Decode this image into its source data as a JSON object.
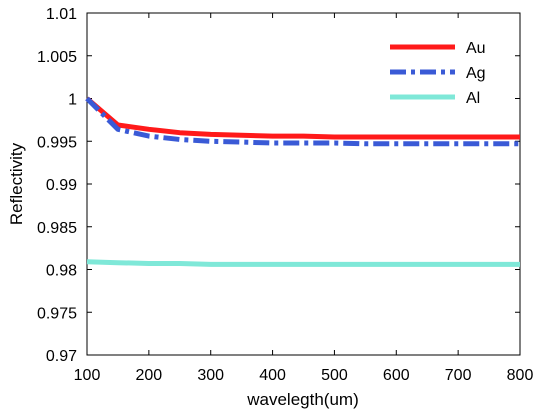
{
  "chart_data": {
    "type": "line",
    "title": "",
    "xlabel": "wavelegth(um)",
    "ylabel": "Reflectivity",
    "xlim": [
      100,
      800
    ],
    "ylim": [
      0.97,
      1.01
    ],
    "xticks": [
      100,
      200,
      300,
      400,
      500,
      600,
      700,
      800
    ],
    "xtick_labels": [
      "100",
      "200",
      "300",
      "400",
      "500",
      "600",
      "700",
      "800"
    ],
    "yticks": [
      0.97,
      0.975,
      0.98,
      0.985,
      0.99,
      0.995,
      1,
      1.005,
      1.01
    ],
    "ytick_labels": [
      "0.97",
      "0.975",
      "0.98",
      "0.985",
      "0.99",
      "0.995",
      "1",
      "1.005",
      "1.01"
    ],
    "grid": false,
    "legend_position": "top-right",
    "series": [
      {
        "name": "Au",
        "color": "#ff1a1a",
        "style": "solid",
        "x": [
          100,
          150,
          200,
          250,
          300,
          350,
          400,
          450,
          500,
          550,
          600,
          650,
          700,
          750,
          800
        ],
        "y": [
          1.0,
          0.9969,
          0.9964,
          0.996,
          0.9958,
          0.9957,
          0.9956,
          0.9956,
          0.9955,
          0.9955,
          0.9955,
          0.9955,
          0.9955,
          0.9955,
          0.9955
        ]
      },
      {
        "name": "Ag",
        "color": "#3a5ad6",
        "style": "dashdot",
        "x": [
          100,
          150,
          200,
          250,
          300,
          350,
          400,
          450,
          500,
          550,
          600,
          650,
          700,
          750,
          800
        ],
        "y": [
          1.0,
          0.9964,
          0.9956,
          0.9952,
          0.995,
          0.9949,
          0.9948,
          0.9948,
          0.9948,
          0.9947,
          0.9947,
          0.9947,
          0.9947,
          0.9947,
          0.9947
        ]
      },
      {
        "name": "Al",
        "color": "#7fe8d8",
        "style": "solid",
        "x": [
          100,
          150,
          200,
          250,
          300,
          350,
          400,
          450,
          500,
          550,
          600,
          650,
          700,
          750,
          800
        ],
        "y": [
          0.9809,
          0.9808,
          0.9807,
          0.9807,
          0.9806,
          0.9806,
          0.9806,
          0.9806,
          0.9806,
          0.9806,
          0.9806,
          0.9806,
          0.9806,
          0.9806,
          0.9806
        ]
      }
    ]
  }
}
